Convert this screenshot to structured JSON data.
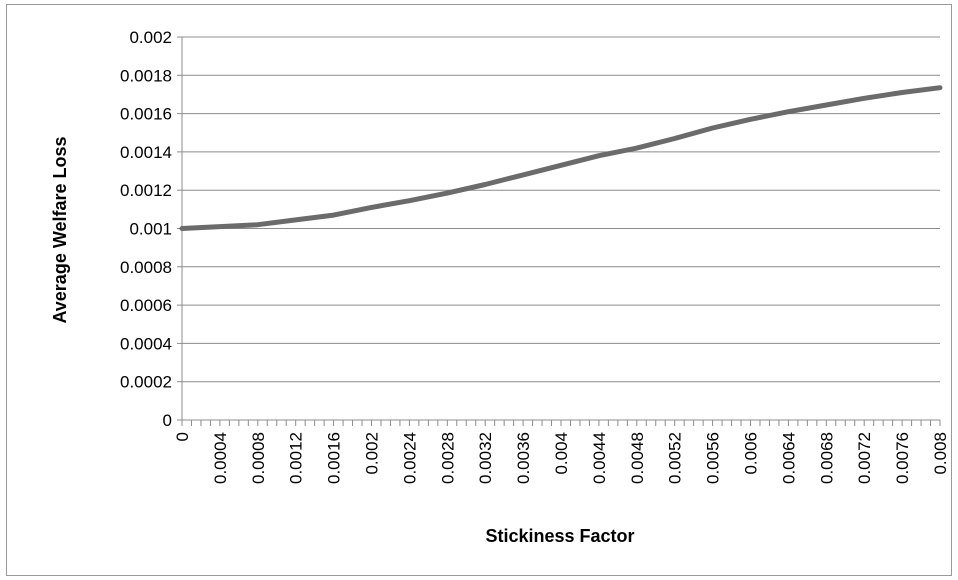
{
  "chart_data": {
    "type": "line",
    "title": "",
    "xlabel": "Stickiness Factor",
    "ylabel": "Average Welfare Loss",
    "xlim": [
      0,
      0.008
    ],
    "ylim": [
      0,
      0.002
    ],
    "y_ticks": [
      "0",
      "0.0002",
      "0.0004",
      "0.0006",
      "0.0008",
      "0.001",
      "0.0012",
      "0.0014",
      "0.0016",
      "0.0018",
      "0.002"
    ],
    "x_ticks": [
      "0",
      "0.0004",
      "0.0008",
      "0.0012",
      "0.0016",
      "0.002",
      "0.0024",
      "0.0028",
      "0.0032",
      "0.0036",
      "0.004",
      "0.0044",
      "0.0048",
      "0.0052",
      "0.0056",
      "0.006",
      "0.0064",
      "0.0068",
      "0.0072",
      "0.0076",
      "0.008"
    ],
    "grid": true,
    "legend": "none",
    "line_color": "#6b6b6b",
    "series": [
      {
        "x": [
          0,
          0.0004,
          0.0008,
          0.0012,
          0.0016,
          0.002,
          0.0024,
          0.0028,
          0.0032,
          0.0036,
          0.004,
          0.0044,
          0.0048,
          0.0052,
          0.0056,
          0.006,
          0.0064,
          0.0068,
          0.0072,
          0.0076,
          0.008
        ],
        "values": [
          0.001,
          0.00101,
          0.00102,
          0.001045,
          0.00107,
          0.00111,
          0.001145,
          0.001185,
          0.00123,
          0.00128,
          0.00133,
          0.00138,
          0.00142,
          0.00147,
          0.001525,
          0.00157,
          0.00161,
          0.001645,
          0.00168,
          0.00171,
          0.001735
        ]
      }
    ]
  }
}
